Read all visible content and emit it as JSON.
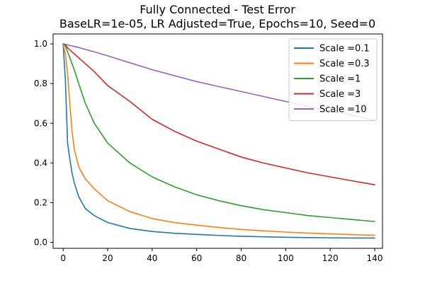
{
  "chart_data": {
    "type": "line",
    "title": "Fully Connected - Test Error",
    "subtitle": "BaseLR=1e-05, LR Adjusted=True, Epochs=10, Seed=0",
    "xlabel": "",
    "ylabel": "",
    "xlim": [
      -4.5,
      143.5
    ],
    "ylim": [
      -0.03,
      1.05
    ],
    "xticks": [
      0,
      20,
      40,
      60,
      80,
      100,
      120,
      140
    ],
    "yticks": [
      0.0,
      0.2,
      0.4,
      0.6,
      0.8,
      1.0
    ],
    "xtick_labels": [
      "0",
      "20",
      "40",
      "60",
      "80",
      "100",
      "120",
      "140"
    ],
    "ytick_labels": [
      "0.0",
      "0.2",
      "0.4",
      "0.6",
      "0.8",
      "1.0"
    ],
    "grid": false,
    "legend": "top-right",
    "x": [
      0,
      1,
      2,
      3,
      4,
      5,
      7,
      10,
      14,
      20,
      30,
      40,
      50,
      60,
      70,
      80,
      90,
      100,
      110,
      120,
      130,
      140
    ],
    "series": [
      {
        "name": "Scale =0.1",
        "color": "#1f77b4",
        "values": [
          1.0,
          0.82,
          0.5,
          0.42,
          0.35,
          0.3,
          0.23,
          0.17,
          0.135,
          0.1,
          0.07,
          0.055,
          0.046,
          0.04,
          0.035,
          0.031,
          0.028,
          0.026,
          0.024,
          0.023,
          0.022,
          0.022
        ]
      },
      {
        "name": "Scale =0.3",
        "color": "#ff7f0e",
        "values": [
          1.0,
          0.95,
          0.85,
          0.7,
          0.56,
          0.47,
          0.38,
          0.32,
          0.27,
          0.21,
          0.155,
          0.12,
          0.1,
          0.087,
          0.075,
          0.065,
          0.058,
          0.052,
          0.047,
          0.043,
          0.039,
          0.036
        ]
      },
      {
        "name": "Scale =1",
        "color": "#2ca02c",
        "values": [
          1.0,
          0.99,
          0.96,
          0.93,
          0.9,
          0.87,
          0.8,
          0.7,
          0.6,
          0.5,
          0.4,
          0.33,
          0.28,
          0.24,
          0.21,
          0.185,
          0.165,
          0.15,
          0.135,
          0.125,
          0.115,
          0.105
        ]
      },
      {
        "name": "Scale =3",
        "color": "#d62728",
        "values": [
          1.0,
          0.995,
          0.98,
          0.97,
          0.96,
          0.95,
          0.93,
          0.9,
          0.86,
          0.79,
          0.71,
          0.62,
          0.56,
          0.51,
          0.47,
          0.43,
          0.4,
          0.375,
          0.35,
          0.33,
          0.31,
          0.29
        ]
      },
      {
        "name": "Scale =10",
        "color": "#9467bd",
        "values": [
          1.0,
          0.998,
          0.995,
          0.992,
          0.99,
          0.987,
          0.982,
          0.972,
          0.96,
          0.94,
          0.905,
          0.87,
          0.84,
          0.81,
          0.785,
          0.76,
          0.735,
          0.71,
          0.685,
          0.66,
          0.64,
          0.615
        ]
      }
    ]
  }
}
